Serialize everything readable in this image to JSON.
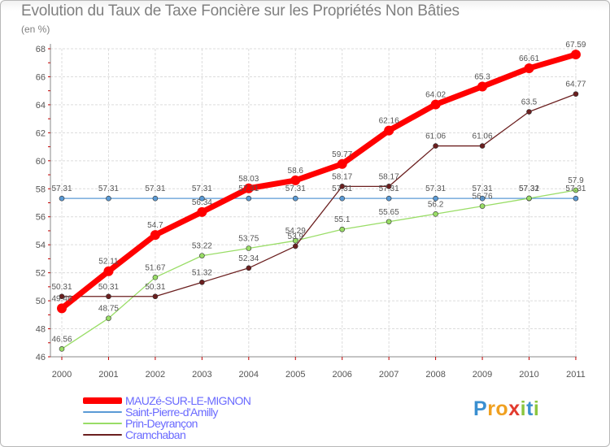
{
  "chart_data": {
    "type": "line",
    "title": "Evolution du Taux de Taxe Foncière sur les Propriétés Non Bâties",
    "subtitle": "(en %)",
    "x": [
      "2000",
      "2001",
      "2002",
      "2003",
      "2004",
      "2005",
      "2006",
      "2007",
      "2008",
      "2009",
      "2010",
      "2011"
    ],
    "ylim": [
      46,
      68
    ],
    "yticks": [
      "46",
      "48",
      "50",
      "52",
      "54",
      "56",
      "58",
      "60",
      "62",
      "64",
      "66",
      "68"
    ],
    "grid": true,
    "legend_position": "bottom-left",
    "series": [
      {
        "name": "MAUZé-SUR-LE-MIGNON",
        "color": "#ff0000",
        "values": [
          49.46,
          52.11,
          54.7,
          56.34,
          58.03,
          58.6,
          59.77,
          62.16,
          64.02,
          65.3,
          66.61,
          67.59
        ],
        "labels": [
          "49.46",
          "52.11",
          "54.7",
          "56.34",
          "58.03",
          "58.6",
          "59.77",
          "62.16",
          "64.02",
          "65.3",
          "66.61",
          "67.59"
        ]
      },
      {
        "name": "Saint-Pierre-d'Amilly",
        "color": "#5a9ad5",
        "values": [
          57.31,
          57.31,
          57.31,
          57.31,
          57.31,
          57.31,
          57.31,
          57.31,
          57.31,
          57.31,
          57.31,
          57.31
        ],
        "labels": [
          "57.31",
          "57.31",
          "57.31",
          "57.31",
          "57.31",
          "57.31",
          "57.31",
          "57.31",
          "57.31",
          "57.31",
          "57.31",
          "57.31"
        ]
      },
      {
        "name": "Prin-Deyrançon",
        "color": "#99dd66",
        "values": [
          46.56,
          48.75,
          51.67,
          53.22,
          53.75,
          54.29,
          55.1,
          55.65,
          56.2,
          56.76,
          57.32,
          57.9
        ],
        "labels": [
          "46.56",
          "48.75",
          "51.67",
          "53.22",
          "53.75",
          "54.29",
          "55.1",
          "55.65",
          "56.2",
          "56.76",
          "57.32",
          "57.9"
        ]
      },
      {
        "name": "Cramchaban",
        "color": "#6b1f1f",
        "values": [
          50.31,
          50.31,
          50.31,
          51.32,
          52.34,
          53.9,
          58.17,
          58.17,
          61.06,
          61.06,
          63.5,
          64.77
        ],
        "labels": [
          "50.31",
          "50.31",
          "50.31",
          "51.32",
          "52.34",
          "53.9",
          "58.17",
          "58.17",
          "61.06",
          "61.06",
          "63.5",
          "64.77"
        ]
      }
    ]
  },
  "legend": {
    "items": [
      {
        "label": "MAUZé-SUR-LE-MIGNON",
        "color": "#ff0000"
      },
      {
        "label": "Saint-Pierre-d'Amilly",
        "color": "#5a9ad5"
      },
      {
        "label": "Prin-Deyrançon",
        "color": "#99dd66"
      },
      {
        "label": "Cramchaban",
        "color": "#6b1f1f"
      }
    ]
  },
  "logo": {
    "text": "Proxiti",
    "letters": [
      {
        "ch": "P",
        "color": "#3a8fd0"
      },
      {
        "ch": "r",
        "color": "#f0a020"
      },
      {
        "ch": "o",
        "color": "#f0a020"
      },
      {
        "ch": "x",
        "color": "#e23b2e"
      },
      {
        "ch": "i",
        "color": "#8cc63f"
      },
      {
        "ch": "t",
        "color": "#3a8fd0"
      },
      {
        "ch": "i",
        "color": "#8cc63f"
      }
    ]
  }
}
